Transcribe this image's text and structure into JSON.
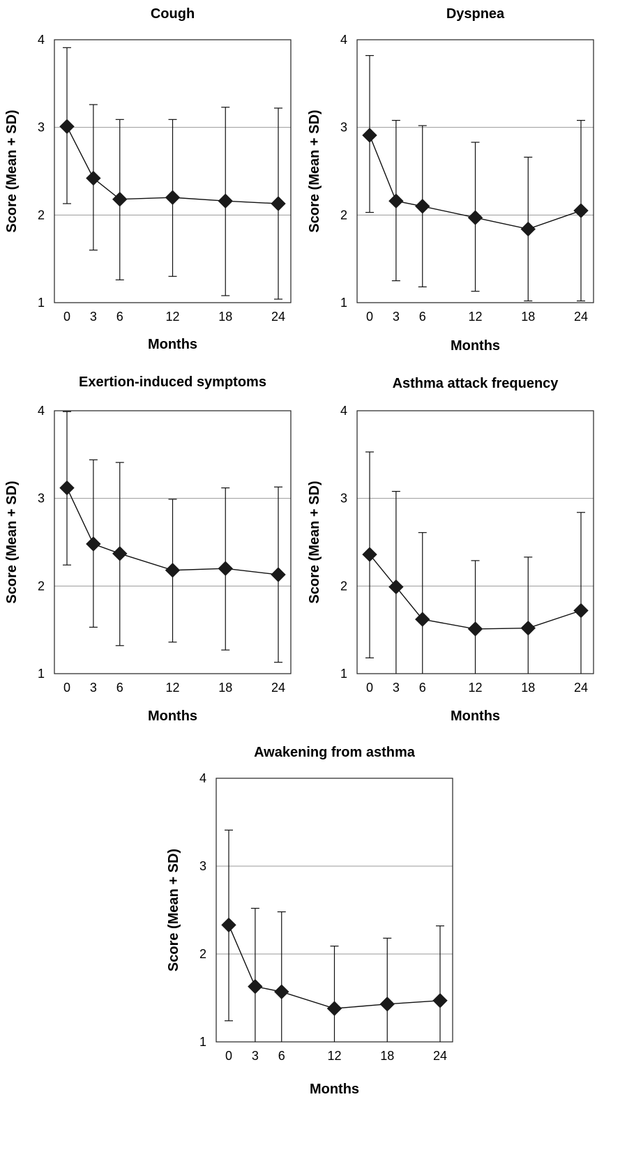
{
  "chart_data": [
    {
      "type": "line",
      "title": "Cough",
      "xlabel": "Months",
      "ylabel": "Score (Mean + SD)",
      "x": [
        0,
        3,
        6,
        12,
        18,
        24
      ],
      "xticks": [
        "0",
        "3",
        "6",
        "12",
        "18",
        "24"
      ],
      "yticks": [
        "1",
        "2",
        "3",
        "4"
      ],
      "ylim": [
        1,
        4
      ],
      "grid": "horizontal",
      "series": [
        {
          "values": [
            3.01,
            2.42,
            2.18,
            2.2,
            2.16,
            2.13
          ],
          "sd_low": [
            2.13,
            1.6,
            1.26,
            1.3,
            1.08,
            1.04
          ],
          "sd_high": [
            3.91,
            3.26,
            3.09,
            3.09,
            3.23,
            3.22
          ]
        }
      ]
    },
    {
      "type": "line",
      "title": "Dyspnea",
      "xlabel": "Months",
      "ylabel": "Score (Mean + SD)",
      "x": [
        0,
        3,
        6,
        12,
        18,
        24
      ],
      "xticks": [
        "0",
        "3",
        "6",
        "12",
        "18",
        "24"
      ],
      "yticks": [
        "1",
        "2",
        "3",
        "4"
      ],
      "ylim": [
        1,
        4
      ],
      "grid": "horizontal",
      "series": [
        {
          "values": [
            2.91,
            2.16,
            2.1,
            1.97,
            1.84,
            2.05
          ],
          "sd_low": [
            2.03,
            1.25,
            1.18,
            1.13,
            1.02,
            1.02
          ],
          "sd_high": [
            3.82,
            3.08,
            3.02,
            2.83,
            2.66,
            3.08
          ]
        }
      ]
    },
    {
      "type": "line",
      "title": "Exertion-induced symptoms",
      "xlabel": "Months",
      "ylabel": "Score (Mean + SD)",
      "x": [
        0,
        3,
        6,
        12,
        18,
        24
      ],
      "xticks": [
        "0",
        "3",
        "6",
        "12",
        "18",
        "24"
      ],
      "yticks": [
        "1",
        "2",
        "3",
        "4"
      ],
      "ylim": [
        1,
        4
      ],
      "grid": "horizontal",
      "series": [
        {
          "values": [
            3.12,
            2.48,
            2.37,
            2.18,
            2.2,
            2.13
          ],
          "sd_low": [
            2.24,
            1.53,
            1.32,
            1.36,
            1.27,
            1.13
          ],
          "sd_high": [
            3.99,
            3.44,
            3.41,
            2.99,
            3.12,
            3.13
          ]
        }
      ]
    },
    {
      "type": "line",
      "title": "Asthma attack frequency",
      "xlabel": "Months",
      "ylabel": "Score (Mean + SD)",
      "x": [
        0,
        3,
        6,
        12,
        18,
        24
      ],
      "xticks": [
        "0",
        "3",
        "6",
        "12",
        "18",
        "24"
      ],
      "yticks": [
        "1",
        "2",
        "3",
        "4"
      ],
      "ylim": [
        1,
        4
      ],
      "grid": "horizontal",
      "series": [
        {
          "values": [
            2.36,
            1.99,
            1.62,
            1.51,
            1.52,
            1.72
          ],
          "sd_low": [
            1.18,
            1.0,
            1.0,
            1.0,
            1.0,
            1.0
          ],
          "sd_high": [
            3.53,
            3.08,
            2.61,
            2.29,
            2.33,
            2.84
          ]
        }
      ]
    },
    {
      "type": "line",
      "title": "Awakening from asthma",
      "xlabel": "Months",
      "ylabel": "Score (Mean + SD)",
      "x": [
        0,
        3,
        6,
        12,
        18,
        24
      ],
      "xticks": [
        "0",
        "3",
        "6",
        "12",
        "18",
        "24"
      ],
      "yticks": [
        "1",
        "2",
        "3",
        "4"
      ],
      "ylim": [
        1,
        4
      ],
      "grid": "horizontal",
      "series": [
        {
          "values": [
            2.33,
            1.63,
            1.57,
            1.38,
            1.43,
            1.47
          ],
          "sd_low": [
            1.24,
            1.0,
            1.0,
            1.0,
            1.0,
            1.0
          ],
          "sd_high": [
            3.41,
            2.52,
            2.48,
            2.09,
            2.18,
            2.32
          ]
        }
      ]
    }
  ]
}
